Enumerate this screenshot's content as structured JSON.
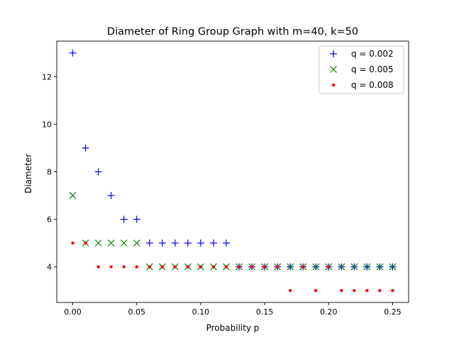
{
  "chart_data": {
    "type": "scatter",
    "title": "Diameter of Ring Group Graph with m=40, k=50",
    "xlabel": "Probability p",
    "ylabel": "Diameter",
    "xlim": [
      -0.0125,
      0.2625
    ],
    "ylim": [
      2.5,
      13.5
    ],
    "xticks": [
      0.0,
      0.05,
      0.1,
      0.15,
      0.2,
      0.25
    ],
    "xtick_labels": [
      "0.00",
      "0.05",
      "0.10",
      "0.15",
      "0.20",
      "0.25"
    ],
    "yticks": [
      4,
      6,
      8,
      10,
      12
    ],
    "ytick_labels": [
      "4",
      "6",
      "8",
      "10",
      "12"
    ],
    "grid": false,
    "legend_position": "top-right",
    "x": [
      0.0,
      0.01,
      0.02,
      0.03,
      0.04,
      0.05,
      0.06,
      0.07,
      0.08,
      0.09,
      0.1,
      0.11,
      0.12,
      0.13,
      0.14,
      0.15,
      0.16,
      0.17,
      0.18,
      0.19,
      0.2,
      0.21,
      0.22,
      0.23,
      0.24,
      0.25
    ],
    "series": [
      {
        "name": "q = 0.002",
        "marker": "plus",
        "color": "#0000ff",
        "values": [
          13,
          9,
          8,
          7,
          6,
          6,
          5,
          5,
          5,
          5,
          5,
          5,
          5,
          4,
          4,
          4,
          4,
          4,
          4,
          4,
          4,
          4,
          4,
          4,
          4,
          4
        ]
      },
      {
        "name": "q = 0.005",
        "marker": "x",
        "color": "#008000",
        "values": [
          7,
          5,
          5,
          5,
          5,
          5,
          4,
          4,
          4,
          4,
          4,
          4,
          4,
          4,
          4,
          4,
          4,
          4,
          4,
          4,
          4,
          4,
          4,
          4,
          4,
          4
        ]
      },
      {
        "name": "q = 0.008",
        "marker": "dot",
        "color": "#ff0000",
        "values": [
          5,
          5,
          4,
          4,
          4,
          4,
          4,
          4,
          4,
          4,
          4,
          4,
          4,
          4,
          4,
          4,
          4,
          3,
          4,
          3,
          4,
          3,
          3,
          3,
          3,
          3
        ]
      }
    ]
  }
}
